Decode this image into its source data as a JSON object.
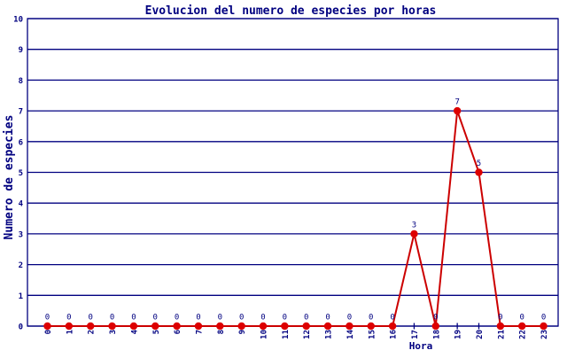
{
  "colors": {
    "axis": "#000080",
    "grid": "#000080",
    "line": "#cc0000",
    "marker": "#dd0000",
    "text": "#000080",
    "background": "#ffffff"
  },
  "chart_data": {
    "type": "line",
    "title": "Evolucion del numero de especies por horas",
    "xlabel": "Hora",
    "ylabel": "Numero de especies",
    "x": [
      0,
      1,
      2,
      3,
      4,
      5,
      6,
      7,
      8,
      9,
      10,
      11,
      12,
      13,
      14,
      15,
      16,
      17,
      18,
      19,
      20,
      21,
      22,
      23
    ],
    "values": [
      0,
      0,
      0,
      0,
      0,
      0,
      0,
      0,
      0,
      0,
      0,
      0,
      0,
      0,
      0,
      0,
      0,
      3,
      0,
      7,
      5,
      0,
      0,
      0
    ],
    "ylim": [
      0,
      10
    ],
    "yticks": [
      0,
      1,
      2,
      3,
      4,
      5,
      6,
      7,
      8,
      9,
      10
    ],
    "grid": "horizontal gridlines at every integer, full plot frame",
    "x_tick_label_rotation": -90,
    "point_labels": "value shown above every marker",
    "legend_position": null,
    "marker": "filled-circle",
    "line_color": "#cc0000",
    "marker_color": "#dd0000",
    "axis_color": "#000080"
  }
}
